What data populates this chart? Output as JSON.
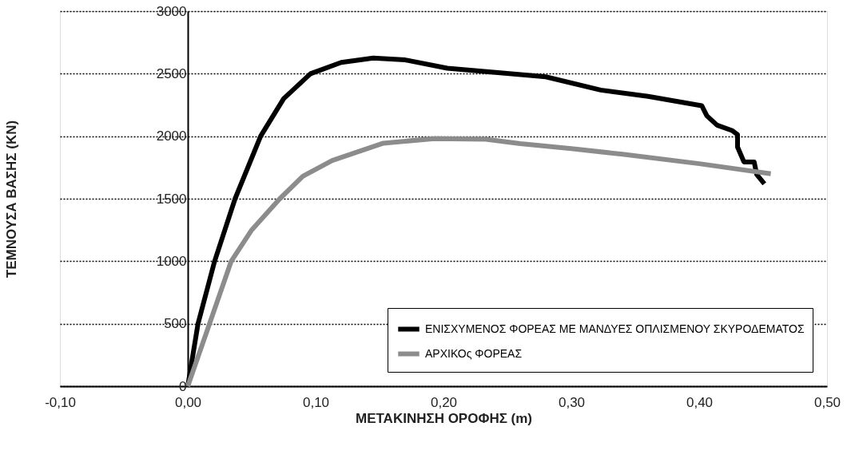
{
  "chart_data": {
    "type": "line",
    "xlabel": "ΜΕΤΑΚΙΝΗΣΗ ΟΡΟΦΗΣ (m)",
    "ylabel": "ΤΕΜΝΟΥΣΑ ΒΑΣΗΣ (KN)",
    "xlim": [
      -0.1,
      0.5
    ],
    "ylim": [
      0,
      3000
    ],
    "xticks": [
      {
        "value": -0.1,
        "label": "-0,10"
      },
      {
        "value": 0,
        "label": "0,00"
      },
      {
        "value": 0.1,
        "label": "0,10"
      },
      {
        "value": 0.2,
        "label": "0,20"
      },
      {
        "value": 0.3,
        "label": "0,30"
      },
      {
        "value": 0.4,
        "label": "0,40"
      },
      {
        "value": 0.5,
        "label": "0,50"
      }
    ],
    "yticks": [
      0,
      500,
      1000,
      1500,
      2000,
      2500,
      3000
    ],
    "grid": "y",
    "legend": "bottom right",
    "marker": "none",
    "line_style": "solid",
    "series": [
      {
        "name": "ΕΝΙΣΧΥΜΕΝΟΣ ΦΟΡΕΑΣ ΜΕ ΜΑΝΔΥΕΣ ΟΠΛΙΣΜΕΝΟΥ ΣΚΥΡΟΔΕΜΑΤΟΣ",
        "color": "#000000",
        "x": [
          0,
          0.008,
          0.021,
          0.037,
          0.057,
          0.075,
          0.096,
          0.12,
          0.145,
          0.17,
          0.203,
          0.239,
          0.28,
          0.323,
          0.36,
          0.402,
          0.406,
          0.414,
          0.426,
          0.43,
          0.43,
          0.435,
          0.443,
          0.445,
          0.451
        ],
        "values": [
          0,
          500,
          1000,
          1500,
          2000,
          2300,
          2500,
          2590,
          2625,
          2610,
          2544,
          2512,
          2475,
          2369,
          2319,
          2244,
          2163,
          2088,
          2044,
          2013,
          1913,
          1794,
          1794,
          1694,
          1619
        ]
      },
      {
        "name": "ΑΡΧΙΚΟς ΦΟΡΕΑΣ",
        "color": "#8c8c8c",
        "x": [
          0,
          0.017,
          0.034,
          0.05,
          0.072,
          0.09,
          0.113,
          0.153,
          0.193,
          0.233,
          0.26,
          0.3,
          0.34,
          0.4,
          0.456
        ],
        "values": [
          0,
          500,
          1000,
          1250,
          1500,
          1680,
          1806,
          1944,
          1981,
          1975,
          1940,
          1900,
          1856,
          1780,
          1700
        ]
      }
    ]
  }
}
